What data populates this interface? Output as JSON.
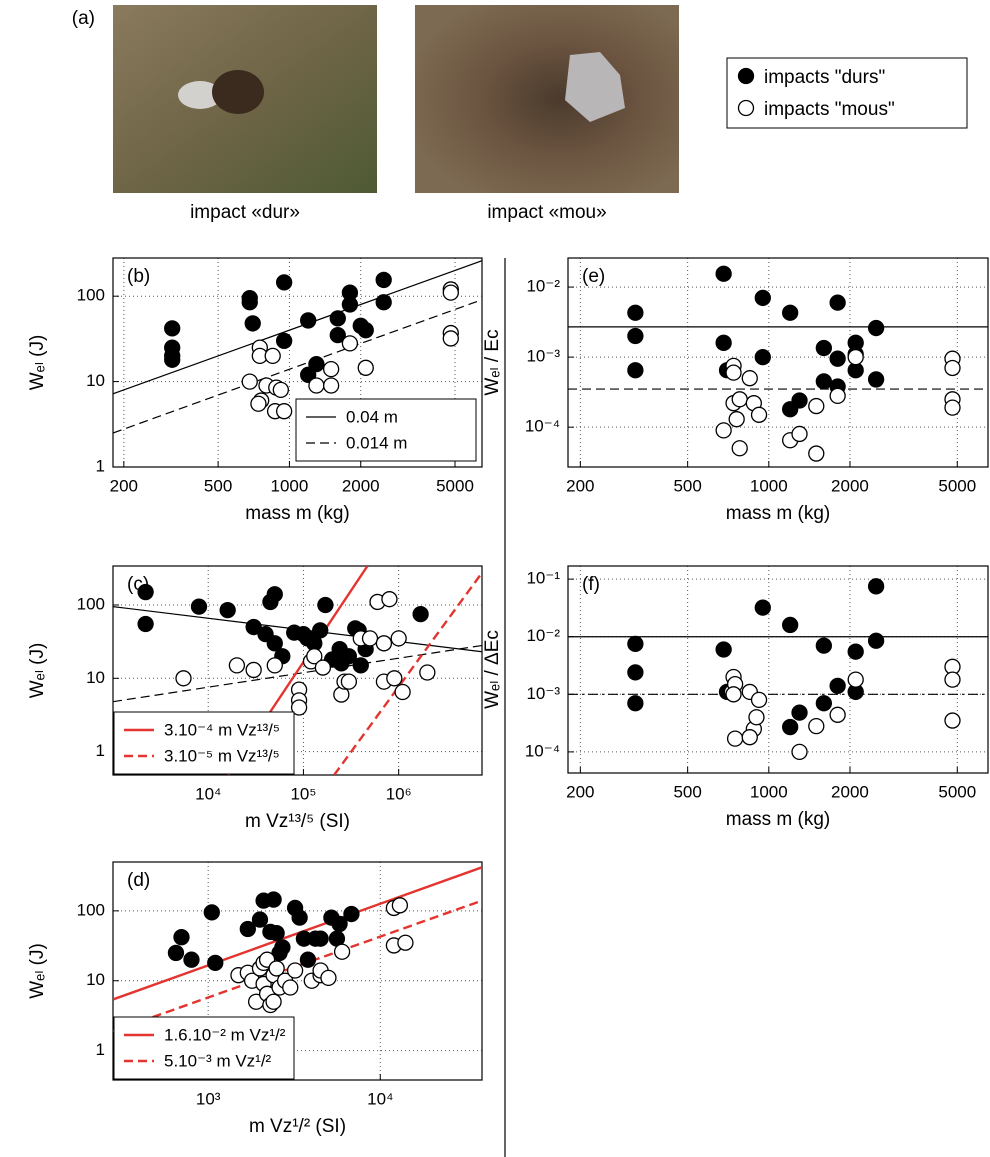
{
  "panel_a": {
    "label": "(a)",
    "captions": [
      "impact «dur»",
      "impact «mou»"
    ]
  },
  "shared_legend": [
    "impacts \"durs\"",
    "impacts \"mous\""
  ],
  "chart_data": [
    {
      "type": "scatter",
      "label": "(b)",
      "xlabel": "mass m (kg)",
      "ylabel": "Wₑₗ (J)",
      "log_x": true,
      "log_y": true,
      "grid": true,
      "legend": "lower right",
      "xlim": [
        180,
        6500
      ],
      "ylim": [
        1,
        280
      ],
      "xticks": [
        200,
        500,
        1000,
        2000,
        5000
      ],
      "yticks": [
        1,
        10,
        100
      ],
      "series": [
        {
          "type": "line",
          "name": "0.04 m",
          "color": "#000",
          "style": "solid",
          "x": [
            180,
            6500
          ],
          "values": [
            7.2,
            260
          ]
        },
        {
          "type": "line",
          "name": "0.014 m",
          "color": "#000",
          "style": "dashed",
          "x": [
            180,
            6500
          ],
          "values": [
            2.5,
            91
          ]
        },
        {
          "type": "scatter",
          "color": "#000",
          "marker_fill": "#000",
          "x": [
            320,
            320,
            320,
            320,
            680,
            680,
            700,
            950,
            950,
            1200,
            1300,
            1200,
            1600,
            1600,
            1800,
            1800,
            2000,
            2100,
            2500,
            2500
          ],
          "values": [
            42,
            25,
            20,
            18,
            95,
            85,
            48,
            145,
            30,
            52,
            16,
            12,
            55,
            35,
            110,
            80,
            45,
            40,
            155,
            85
          ]
        },
        {
          "type": "scatter",
          "color": "#000",
          "marker_fill": "#fff",
          "x": [
            680,
            750,
            750,
            760,
            740,
            800,
            850,
            880,
            870,
            920,
            950,
            1300,
            1500,
            1500,
            1800,
            2100,
            4800,
            4800,
            4800,
            4800
          ],
          "values": [
            10,
            25,
            20,
            6,
            5.5,
            9,
            20,
            8.5,
            4.5,
            8,
            4.5,
            9,
            14,
            9,
            28,
            14.5,
            120,
            110,
            37,
            32
          ]
        }
      ]
    },
    {
      "type": "scatter",
      "label": "(c)",
      "xlabel": "m Vz¹³/⁵ (SI)",
      "ylabel": "Wₑₗ (J)",
      "log_x": true,
      "log_y": true,
      "grid": true,
      "legend": "lower left",
      "xlim": [
        1000,
        7500000
      ],
      "ylim": [
        0.48,
        340
      ],
      "xticks": [
        {
          "value": 10000,
          "label": "10⁴"
        },
        {
          "value": 100000,
          "label": "10⁵"
        },
        {
          "value": 1000000,
          "label": "10⁶"
        }
      ],
      "yticks": [
        1,
        10,
        100
      ],
      "series": [
        {
          "type": "line",
          "color": "#000",
          "style": "solid",
          "x": [
            1000,
            7500000
          ],
          "values": [
            95,
            23
          ]
        },
        {
          "type": "line",
          "color": "#000",
          "style": "dashed",
          "x": [
            1000,
            7500000
          ],
          "values": [
            4.8,
            28
          ]
        },
        {
          "type": "line",
          "name": "3.10⁻⁴ m Vz¹³/⁵",
          "color": "#e3342f",
          "style": "solid",
          "x": [
            16200,
            470000
          ],
          "values": [
            0.48,
            340
          ]
        },
        {
          "type": "line",
          "name": "3.10⁻⁵ m Vz¹³/⁵",
          "color": "#e3342f",
          "style": "dashed",
          "x": [
            210000,
            7500000
          ],
          "values": [
            0.48,
            275
          ]
        },
        {
          "type": "scatter",
          "color": "#000",
          "marker_fill": "#000",
          "x": [
            2200,
            2200,
            8000,
            16000,
            30000,
            45000,
            50000,
            40000,
            50000,
            60000,
            80000,
            100000,
            110000,
            130000,
            150000,
            170000,
            200000,
            250000,
            300000,
            350000,
            380000,
            400000,
            450000,
            1700000,
            240000
          ],
          "values": [
            150,
            55,
            95,
            85,
            50,
            110,
            140,
            40,
            30,
            20,
            42,
            40,
            35,
            30,
            45,
            100,
            18,
            16,
            20,
            48,
            45,
            15,
            25,
            75,
            25
          ]
        },
        {
          "type": "scatter",
          "color": "#000",
          "marker_fill": "#fff",
          "x": [
            5500,
            20000,
            30000,
            50000,
            90000,
            90000,
            90000,
            120000,
            130000,
            160000,
            250000,
            270000,
            300000,
            400000,
            500000,
            600000,
            700000,
            800000,
            700000,
            900000,
            1100000,
            1000000,
            2000000
          ],
          "values": [
            10,
            15,
            13,
            15,
            7,
            5,
            4,
            17,
            20,
            14,
            6,
            9,
            9,
            35,
            35,
            110,
            30,
            120,
            9,
            10,
            6.5,
            35,
            12
          ]
        }
      ]
    },
    {
      "type": "scatter",
      "label": "(d)",
      "xlabel": "m Vz¹/² (SI)",
      "ylabel": "Wₑₗ (J)",
      "log_x": true,
      "log_y": true,
      "grid": true,
      "legend": "lower left",
      "xlim": [
        280,
        39000
      ],
      "ylim": [
        0.38,
        500
      ],
      "xticks": [
        {
          "value": 1000,
          "label": "10³"
        },
        {
          "value": 10000,
          "label": "10⁴"
        }
      ],
      "yticks": [
        1,
        10,
        100
      ],
      "series": [
        {
          "type": "line",
          "name": "1.6.10⁻² m Vz¹/²",
          "color": "#e3342f",
          "style": "solid",
          "x": [
            280,
            39000
          ],
          "values": [
            5.4,
            420
          ]
        },
        {
          "type": "line",
          "name": "5.10⁻³ m Vz¹/²",
          "color": "#e3342f",
          "style": "dashed",
          "x": [
            280,
            39000
          ],
          "values": [
            1.9,
            140
          ]
        },
        {
          "type": "scatter",
          "color": "#000",
          "marker_fill": "#000",
          "x": [
            650,
            700,
            800,
            1050,
            1100,
            1700,
            2000,
            2100,
            2300,
            2400,
            2500,
            2600,
            2700,
            3200,
            3400,
            3600,
            3800,
            4200,
            4500,
            5200,
            5600,
            5800,
            6800
          ],
          "values": [
            25,
            42,
            20,
            95,
            18,
            55,
            75,
            140,
            50,
            145,
            48,
            25,
            30,
            110,
            80,
            40,
            20,
            40,
            40,
            80,
            40,
            65,
            90
          ]
        },
        {
          "type": "scatter",
          "color": "#000",
          "marker_fill": "#fff",
          "x": [
            1500,
            1700,
            1800,
            1900,
            2000,
            2100,
            2100,
            2200,
            2200,
            2300,
            2400,
            2400,
            2500,
            2600,
            2800,
            3000,
            3200,
            4000,
            4500,
            4500,
            5000,
            6000,
            12000,
            12000,
            13000,
            14000
          ],
          "values": [
            12,
            13,
            10,
            5,
            15,
            18,
            9,
            20,
            6.5,
            4.5,
            5,
            12,
            15,
            8,
            10,
            8,
            14,
            10,
            12,
            14,
            11,
            26,
            110,
            32,
            120,
            35
          ]
        }
      ]
    },
    {
      "type": "scatter",
      "label": "(e)",
      "xlabel": "mass m (kg)",
      "ylabel": "Wₑₗ / Ec",
      "log_x": true,
      "log_y": true,
      "grid": true,
      "xlim": [
        180,
        6500
      ],
      "ylim": [
        2.7e-05,
        0.026
      ],
      "xticks": [
        200,
        500,
        1000,
        2000,
        5000
      ],
      "yticks": [
        {
          "value": 0.0001,
          "label": "10⁻⁴"
        },
        {
          "value": 0.001,
          "label": "10⁻³"
        },
        {
          "value": 0.01,
          "label": "10⁻²"
        }
      ],
      "series": [
        {
          "type": "line",
          "color": "#000",
          "style": "solid",
          "x": [
            180,
            6500
          ],
          "values": [
            0.0027,
            0.0027
          ]
        },
        {
          "type": "line",
          "color": "#000",
          "style": "dashed",
          "x": [
            180,
            6500
          ],
          "values": [
            0.00035,
            0.00035
          ]
        },
        {
          "type": "scatter",
          "color": "#000",
          "marker_fill": "#000",
          "x": [
            320,
            320,
            320,
            680,
            680,
            700,
            950,
            950,
            1200,
            1200,
            1300,
            1600,
            1600,
            1800,
            1800,
            1800,
            2100,
            2100,
            2100,
            2500,
            2500
          ],
          "values": [
            0.0043,
            0.002,
            0.00065,
            0.0155,
            0.0016,
            0.00065,
            0.007,
            0.001,
            0.0043,
            0.00018,
            0.00024,
            0.00135,
            0.00045,
            0.006,
            0.00095,
            0.00038,
            0.0016,
            0.0011,
            0.00065,
            0.0026,
            0.00048
          ]
        },
        {
          "type": "scatter",
          "color": "#000",
          "marker_fill": "#fff",
          "x": [
            680,
            740,
            740,
            740,
            760,
            780,
            780,
            850,
            880,
            920,
            1200,
            1300,
            1500,
            1500,
            1800,
            2100,
            4800,
            4800,
            4800,
            4800
          ],
          "values": [
            9e-05,
            0.00075,
            0.0006,
            0.00022,
            0.00013,
            5e-05,
            0.00025,
            0.0005,
            0.00022,
            0.00015,
            6.5e-05,
            8e-05,
            0.0002,
            4.2e-05,
            0.00028,
            0.001,
            0.00095,
            0.0007,
            0.00025,
            0.00019
          ]
        }
      ]
    },
    {
      "type": "scatter",
      "label": "(f)",
      "xlabel": "mass m (kg)",
      "ylabel": "Wₑₗ / ΔEc",
      "log_x": true,
      "log_y": true,
      "grid": true,
      "xlim": [
        180,
        6500
      ],
      "ylim": [
        4.3e-05,
        0.169
      ],
      "xticks": [
        200,
        500,
        1000,
        2000,
        5000
      ],
      "yticks": [
        {
          "value": 0.0001,
          "label": "10⁻⁴"
        },
        {
          "value": 0.001,
          "label": "10⁻³"
        },
        {
          "value": 0.01,
          "label": "10⁻²"
        },
        {
          "value": 0.1,
          "label": "10⁻¹"
        }
      ],
      "series": [
        {
          "type": "line",
          "color": "#000",
          "style": "solid",
          "x": [
            180,
            6500
          ],
          "values": [
            0.01,
            0.01
          ]
        },
        {
          "type": "line",
          "color": "#000",
          "style": "dashdot",
          "x": [
            180,
            6500
          ],
          "values": [
            0.001,
            0.001
          ]
        },
        {
          "type": "scatter",
          "color": "#000",
          "marker_fill": "#000",
          "x": [
            320,
            320,
            320,
            680,
            700,
            950,
            1200,
            1200,
            1300,
            1600,
            1600,
            1800,
            2100,
            2100,
            2500,
            2500
          ],
          "values": [
            0.0075,
            0.0024,
            0.0007,
            0.006,
            0.0011,
            0.032,
            0.016,
            0.00027,
            0.00048,
            0.007,
            0.0007,
            0.0014,
            0.0055,
            0.0011,
            0.075,
            0.0085
          ]
        },
        {
          "type": "scatter",
          "color": "#000",
          "marker_fill": "#fff",
          "x": [
            730,
            740,
            750,
            740,
            750,
            850,
            880,
            900,
            850,
            920,
            1300,
            1500,
            1800,
            2100,
            4800,
            4800,
            4800
          ],
          "values": [
            0.0011,
            0.002,
            0.0015,
            0.001,
            0.00017,
            0.0011,
            0.00025,
            0.0004,
            0.00018,
            0.0008,
            0.0001,
            0.00028,
            0.00044,
            0.0018,
            0.003,
            0.0018,
            0.00035
          ]
        }
      ]
    }
  ]
}
